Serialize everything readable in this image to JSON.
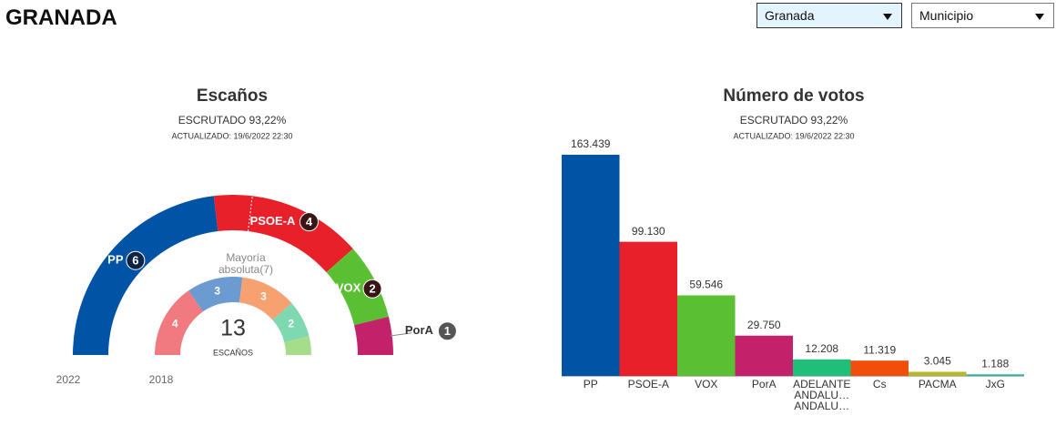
{
  "header": {
    "title": "GRANADA",
    "selects": [
      "Granada",
      "Municipio"
    ]
  },
  "chart_data": [
    {
      "type": "hemicycle",
      "title": "Escaños",
      "subtitle": "ESCRUTADO 93,22%",
      "updated": "ACTUALIZADO: 19/6/2022 22:30",
      "total": 13,
      "total_label": "ESCAÑOS",
      "majority": 7,
      "majority_label": "Mayoría absoluta(7)",
      "series": [
        {
          "name": "2022",
          "categories": [
            "PP",
            "PSOE-A",
            "VOX",
            "PorA"
          ],
          "colors": [
            "#0053a5",
            "#e8202a",
            "#5bbf34",
            "#c4216b"
          ],
          "values": [
            6,
            4,
            2,
            1
          ]
        },
        {
          "name": "2018",
          "colors": [
            "#f07a7f",
            "#6b9bd0",
            "#f7a070",
            "#7fd9b0",
            "#a6dd8a"
          ],
          "values": [
            4,
            3,
            3,
            2,
            1
          ],
          "value_labels": [
            "4",
            "3",
            "3",
            "2",
            null
          ]
        }
      ]
    },
    {
      "type": "bar",
      "title": "Número de votos",
      "subtitle": "ESCRUTADO 93,22%",
      "updated": "ACTUALIZADO: 19/6/2022 22:30",
      "categories": [
        "PP",
        "PSOE-A",
        "VOX",
        "PorA",
        "ADELANTE ANDALU… ANDALU…",
        "Cs",
        "PACMA",
        "JxG"
      ],
      "values": [
        163439,
        99130,
        59546,
        29750,
        12208,
        11319,
        3045,
        1188
      ],
      "value_labels": [
        "163.439",
        "99.130",
        "59.546",
        "29.750",
        "12.208",
        "11.319",
        "3.045",
        "1.188"
      ],
      "colors": [
        "#0053a5",
        "#e8202a",
        "#5bbf34",
        "#c4216b",
        "#1fbf7a",
        "#f04e0a",
        "#b5b82a",
        "#2ab5a5"
      ]
    }
  ]
}
